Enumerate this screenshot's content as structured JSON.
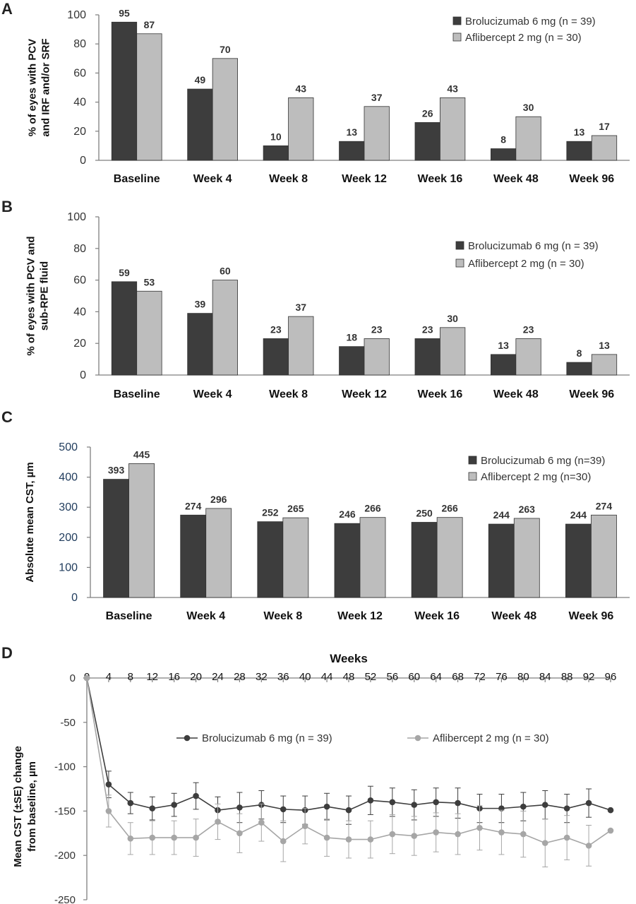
{
  "colors": {
    "brolucizumab": "#3d3d3d",
    "aflibercept": "#bdbdbd",
    "axis": "#7f7f7f",
    "line_b": "#3d3d3d",
    "line_a": "#a6a6a6"
  },
  "chart_data": [
    {
      "panel": "A",
      "type": "bar",
      "ylabel": [
        "% of eyes with PCV",
        "and IRF and/or SRF"
      ],
      "ylim": [
        0,
        100
      ],
      "yticks": [
        0,
        20,
        40,
        60,
        80,
        100
      ],
      "categories": [
        "Baseline",
        "Week 4",
        "Week 8",
        "Week 12",
        "Week 16",
        "Week 48",
        "Week 96"
      ],
      "series": [
        {
          "name": "Brolucizumab 6 mg (n = 39)",
          "values": [
            95,
            49,
            10,
            13,
            26,
            8,
            13
          ]
        },
        {
          "name": "Aflibercept 2 mg (n = 30)",
          "values": [
            87,
            70,
            43,
            37,
            43,
            30,
            17
          ]
        }
      ],
      "legend_position": "top-right"
    },
    {
      "panel": "B",
      "type": "bar",
      "ylabel": [
        "% of eyes with PCV and",
        "sub-RPE fluid"
      ],
      "ylim": [
        0,
        100
      ],
      "yticks": [
        0,
        20,
        40,
        60,
        80,
        100
      ],
      "categories": [
        "Baseline",
        "Week 4",
        "Week 8",
        "Week 12",
        "Week 16",
        "Week 48",
        "Week 96"
      ],
      "series": [
        {
          "name": "Brolucizumab 6 mg (n = 39)",
          "values": [
            59,
            39,
            23,
            18,
            23,
            13,
            8
          ]
        },
        {
          "name": "Aflibercept 2 mg (n = 30)",
          "values": [
            53,
            60,
            37,
            23,
            30,
            23,
            13
          ]
        }
      ],
      "legend_position": "top-right"
    },
    {
      "panel": "C",
      "type": "bar",
      "ylabel": [
        "Absolute mean CST, µm"
      ],
      "ylim": [
        0,
        500
      ],
      "yticks": [
        0,
        100,
        200,
        300,
        400,
        500
      ],
      "categories": [
        "Baseline",
        "Week 4",
        "Week 8",
        "Week 12",
        "Week 16",
        "Week 48",
        "Week 96"
      ],
      "series": [
        {
          "name": "Brolucizumab 6 mg (n=39)",
          "values": [
            393,
            274,
            252,
            246,
            250,
            244,
            244
          ]
        },
        {
          "name": "Aflibercept 2 mg (n=30)",
          "values": [
            445,
            296,
            265,
            266,
            266,
            263,
            274
          ]
        }
      ],
      "legend_position": "top-right"
    },
    {
      "panel": "D",
      "type": "line",
      "xlabel": "Weeks",
      "ylabel": [
        "Mean CST (±SE) change",
        "from baseline, µm"
      ],
      "xlim": [
        0,
        96
      ],
      "ylim": [
        -250,
        0
      ],
      "xticks": [
        0,
        4,
        8,
        12,
        16,
        20,
        24,
        28,
        32,
        36,
        40,
        44,
        48,
        52,
        56,
        60,
        64,
        68,
        72,
        76,
        80,
        84,
        88,
        92,
        96
      ],
      "yticks": [
        0,
        -50,
        -100,
        -150,
        -200,
        -250
      ],
      "series": [
        {
          "name": "Brolucizumab 6 mg (n = 39)",
          "x": [
            0,
            4,
            8,
            12,
            16,
            20,
            24,
            28,
            32,
            36,
            40,
            44,
            48,
            52,
            56,
            60,
            64,
            68,
            72,
            76,
            80,
            84,
            88,
            92,
            96
          ],
          "y": [
            0,
            -120,
            -141,
            -147,
            -143,
            -133,
            -149,
            -146,
            -143,
            -148,
            -149,
            -145,
            -149,
            -138,
            -140,
            -143,
            -140,
            -141,
            -147,
            -147,
            -145,
            -143,
            -147,
            -141,
            -149
          ],
          "se": [
            0,
            15,
            12,
            13,
            13,
            15,
            15,
            17,
            16,
            15,
            16,
            15,
            16,
            16,
            16,
            17,
            16,
            17,
            16,
            16,
            16,
            16,
            16,
            16,
            0
          ]
        },
        {
          "name": "Aflibercept 2 mg (n = 30)",
          "x": [
            0,
            4,
            8,
            12,
            16,
            20,
            24,
            28,
            32,
            36,
            40,
            44,
            48,
            52,
            56,
            60,
            64,
            68,
            72,
            76,
            80,
            84,
            88,
            92,
            96
          ],
          "y": [
            0,
            -150,
            -181,
            -180,
            -180,
            -180,
            -162,
            -175,
            -163,
            -184,
            -167,
            -180,
            -182,
            -182,
            -176,
            -178,
            -174,
            -176,
            -169,
            -174,
            -176,
            -186,
            -180,
            -189,
            -172
          ],
          "se": [
            0,
            18,
            18,
            19,
            19,
            21,
            20,
            22,
            21,
            23,
            20,
            21,
            21,
            21,
            22,
            22,
            22,
            23,
            25,
            25,
            26,
            27,
            25,
            23,
            0
          ]
        }
      ],
      "legend_position": "top"
    }
  ]
}
